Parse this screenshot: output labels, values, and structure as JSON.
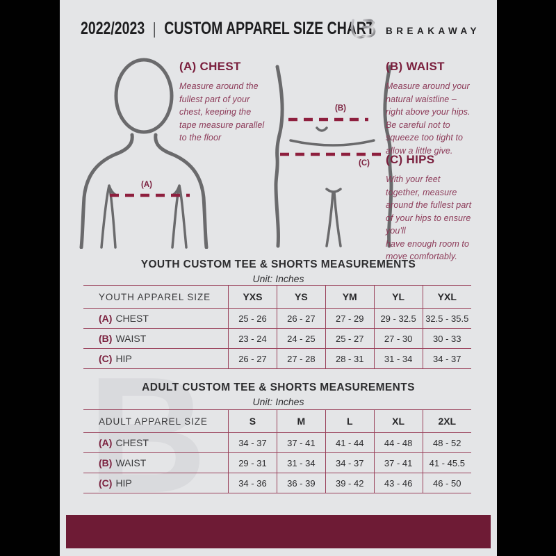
{
  "header": {
    "year": "2022/2023",
    "divider": "|",
    "title": "CUSTOM APPAREL SIZE CHART",
    "brand": "BREAKAWAY"
  },
  "watermark": "B",
  "diagram": {
    "chest_marker": "(A)",
    "waist_marker": "(B)",
    "hips_marker": "(C)"
  },
  "sections": {
    "chest": {
      "heading": "(A) CHEST",
      "body": "Measure around the\nfullest part of your\nchest, keeping the\ntape measure parallel\nto the floor"
    },
    "waist": {
      "heading": "(B) WAIST",
      "body": "Measure around your\nnatural waistline –\nright above your hips.\nBe careful not to\nsqueeze too tight to\nallow a little give."
    },
    "hips": {
      "heading": "(C) HIPS",
      "body": "With your feet\ntogether, measure\naround the fullest part\nof your hips to ensure\nyou'll\nhave enough room to\nmove comfortably."
    }
  },
  "youth_table": {
    "title": "YOUTH CUSTOM TEE & SHORTS MEASUREMENTS",
    "unit": "Unit: Inches",
    "columns": [
      "YOUTH APPAREL SIZE",
      "YXS",
      "YS",
      "YM",
      "YL",
      "YXL"
    ],
    "rows": [
      {
        "prefix": "(A)",
        "label": "CHEST",
        "values": [
          "25 - 26",
          "26 - 27",
          "27 - 29",
          "29 - 32.5",
          "32.5 - 35.5"
        ]
      },
      {
        "prefix": "(B)",
        "label": "WAIST",
        "values": [
          "23 - 24",
          "24 - 25",
          "25 - 27",
          "27 - 30",
          "30 - 33"
        ]
      },
      {
        "prefix": "(C)",
        "label": "HIP",
        "values": [
          "26 - 27",
          "27 - 28",
          "28 - 31",
          "31 - 34",
          "34 - 37"
        ]
      }
    ]
  },
  "adult_table": {
    "title": "ADULT CUSTOM TEE & SHORTS MEASUREMENTS",
    "unit": "Unit: Inches",
    "columns": [
      "ADULT APPAREL SIZE",
      "S",
      "M",
      "L",
      "XL",
      "2XL"
    ],
    "rows": [
      {
        "prefix": "(A)",
        "label": "CHEST",
        "values": [
          "34 - 37",
          "37 - 41",
          "41 - 44",
          "44 - 48",
          "48 - 52"
        ]
      },
      {
        "prefix": "(B)",
        "label": "WAIST",
        "values": [
          "29 - 31",
          "31 - 34",
          "34 - 37",
          "37 - 41",
          "41 - 45.5"
        ]
      },
      {
        "prefix": "(C)",
        "label": "HIP",
        "values": [
          "34 - 36",
          "36 - 39",
          "39 - 42",
          "43 - 46",
          "46 - 50"
        ]
      }
    ]
  },
  "colors": {
    "maroon": "#6E1B35",
    "accent": "#7A1F3D",
    "paragraph": "#8C3A58",
    "dash_line": "#8E1F3E",
    "table_line": "#99405A",
    "page_background": "#E4E5E7",
    "figure_gray": "#6A6A6C"
  }
}
